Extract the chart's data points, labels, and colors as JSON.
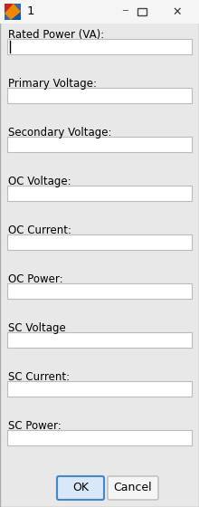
{
  "title": "1",
  "background_color": "#E8E8E8",
  "titlebar_color": "#F5F5F5",
  "labels": [
    "Rated Power (VA):",
    "Primary Voltage:",
    "Secondary Voltage:",
    "OC Voltage:",
    "OC Current:",
    "OC Power:",
    "SC Voltage",
    "SC Current:",
    "SC Power:"
  ],
  "label_fontsize": 8.5,
  "input_box_color": "#FFFFFF",
  "input_box_edge_color": "#BBBBBB",
  "button_ok_label": "OK",
  "button_cancel_label": "Cancel",
  "button_ok_face_color": "#D8E8F8",
  "button_cancel_face_color": "#F5F5F5",
  "button_ok_edge_color": "#4488CC",
  "button_cancel_edge_color": "#BBBBBB",
  "button_text_color": "#000000",
  "fig_width": 2.2,
  "fig_height": 5.6,
  "dpi": 100
}
